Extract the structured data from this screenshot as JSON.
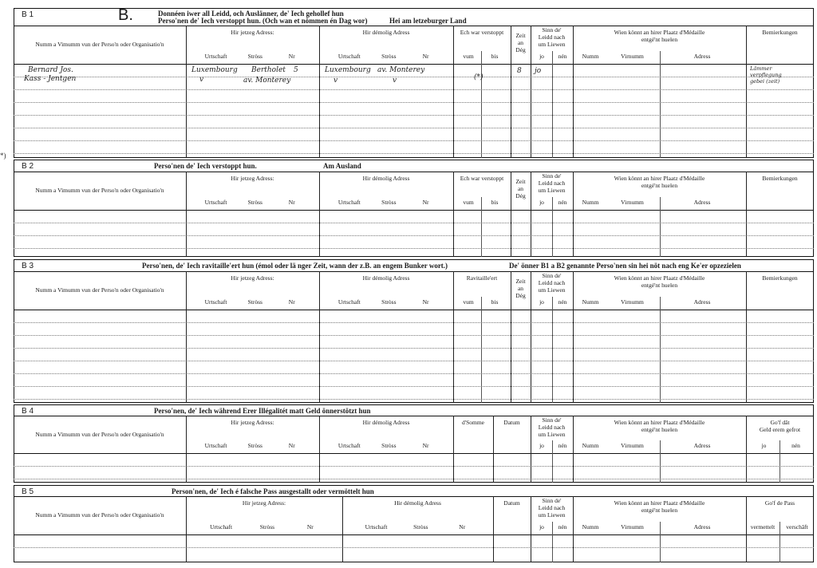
{
  "form": {
    "letter": "B.",
    "margin_note": "*)",
    "headers": {
      "name": "Numm a Vimumm vun der Perso'n oder Organisatio'n",
      "current_address": "Hir jetzeg Adress:",
      "old_address": "Hir démolig Adress",
      "urtschaft": "Urtschaft",
      "stross": "Stròss",
      "nr": "Nr",
      "hidden": "Ech war verstoppt",
      "supplied": "Ravitaille'ert",
      "vum": "vum",
      "bis": "bis",
      "days": [
        "Zeit",
        "an",
        "Dég"
      ],
      "alive": [
        "Sinn de'",
        "Leidd nach",
        "um Liewen"
      ],
      "jo": "jo",
      "nen": "nén",
      "medal": [
        "Wien könnt an hirer Plaatz d'Médaille",
        "entgé'nt huelen"
      ],
      "numm": "Numm",
      "virnumm": "Virnumm",
      "adress": "Adress",
      "remarks": "Bemierkungen",
      "sum": "d'Somme",
      "date": "Datum",
      "money_given": [
        "Go'f dât",
        "Geld erem gefrot"
      ],
      "pass": "Go'f de Pass",
      "vermettelt": "vermettelt",
      "verschaft": "verschâft"
    },
    "sections": [
      {
        "id": "B 1",
        "title": [
          "Donnéen iwer all Leidd, och Auslänner, de' Iech gehollef hun",
          "Perso'nen de' Iech verstoppt hun. (Och wan et nömmen én Dag wor)"
        ],
        "title_right": "Hei am letzeburger Land"
      },
      {
        "id": "B 2",
        "title": [
          "Perso'nen de' Iech verstoppt hun."
        ],
        "title_right": "Am Ausland"
      },
      {
        "id": "B 3",
        "title": [
          "Perso'nen, de' Iech ravitaille'ert hun (émol oder lä nger Zeit, wann der z.B. an engem Bunker wort.)"
        ],
        "title_right": "De' önner B1 a B2 genannte Perso'nen sin hei nöt nach eng Ke'er opzezielen"
      },
      {
        "id": "B 4",
        "title": [
          "Perso'nen, de' Iech während Erer Illégalitét matt Geld önnerstötzt hun"
        ],
        "title_right": ""
      },
      {
        "id": "B 5",
        "title": [
          "Person'nen, de' Iech é falsche Pass ausgestallt oder vermöttelt hun"
        ],
        "title_right": ""
      }
    ],
    "entries": {
      "name_1": "Bernard Jos.",
      "name_2": "Kass - Jentgen",
      "cur_town_1": "Luxembourg",
      "cur_street_1": "Bertholet",
      "cur_nr_1": "5",
      "cur_town_2": "v",
      "cur_street_2": "av. Monterey",
      "old_town_1": "Luxembourg",
      "old_street_1": "av. Monterey",
      "old_town_2": "v",
      "old_street_2": "v",
      "bis_1": "(*)",
      "days_1": "8",
      "jo_1": "jo",
      "remarks_1": "Lämmer",
      "remarks_2": "verpflegung",
      "remarks_3": "gebei (zeit)"
    }
  }
}
